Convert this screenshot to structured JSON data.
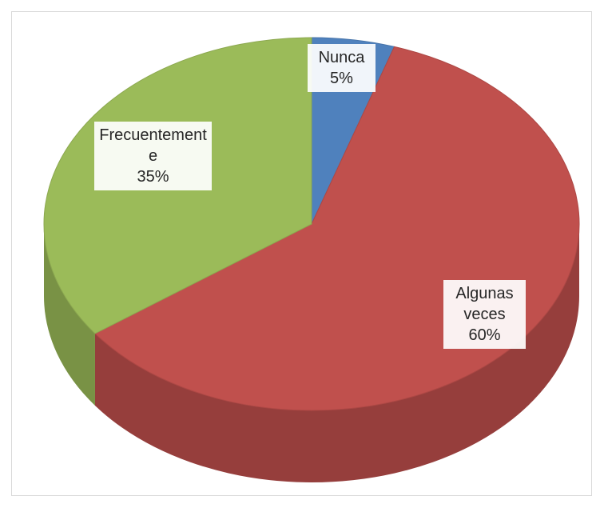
{
  "chart_data": {
    "type": "pie",
    "categories": [
      "Nunca",
      "Algunas veces",
      "Frecuentemente"
    ],
    "values": [
      5,
      60,
      35
    ],
    "value_labels": [
      "5%",
      "60%",
      "35%"
    ],
    "colors": [
      "#4f81bd",
      "#c0504d",
      "#9bbb59"
    ]
  }
}
